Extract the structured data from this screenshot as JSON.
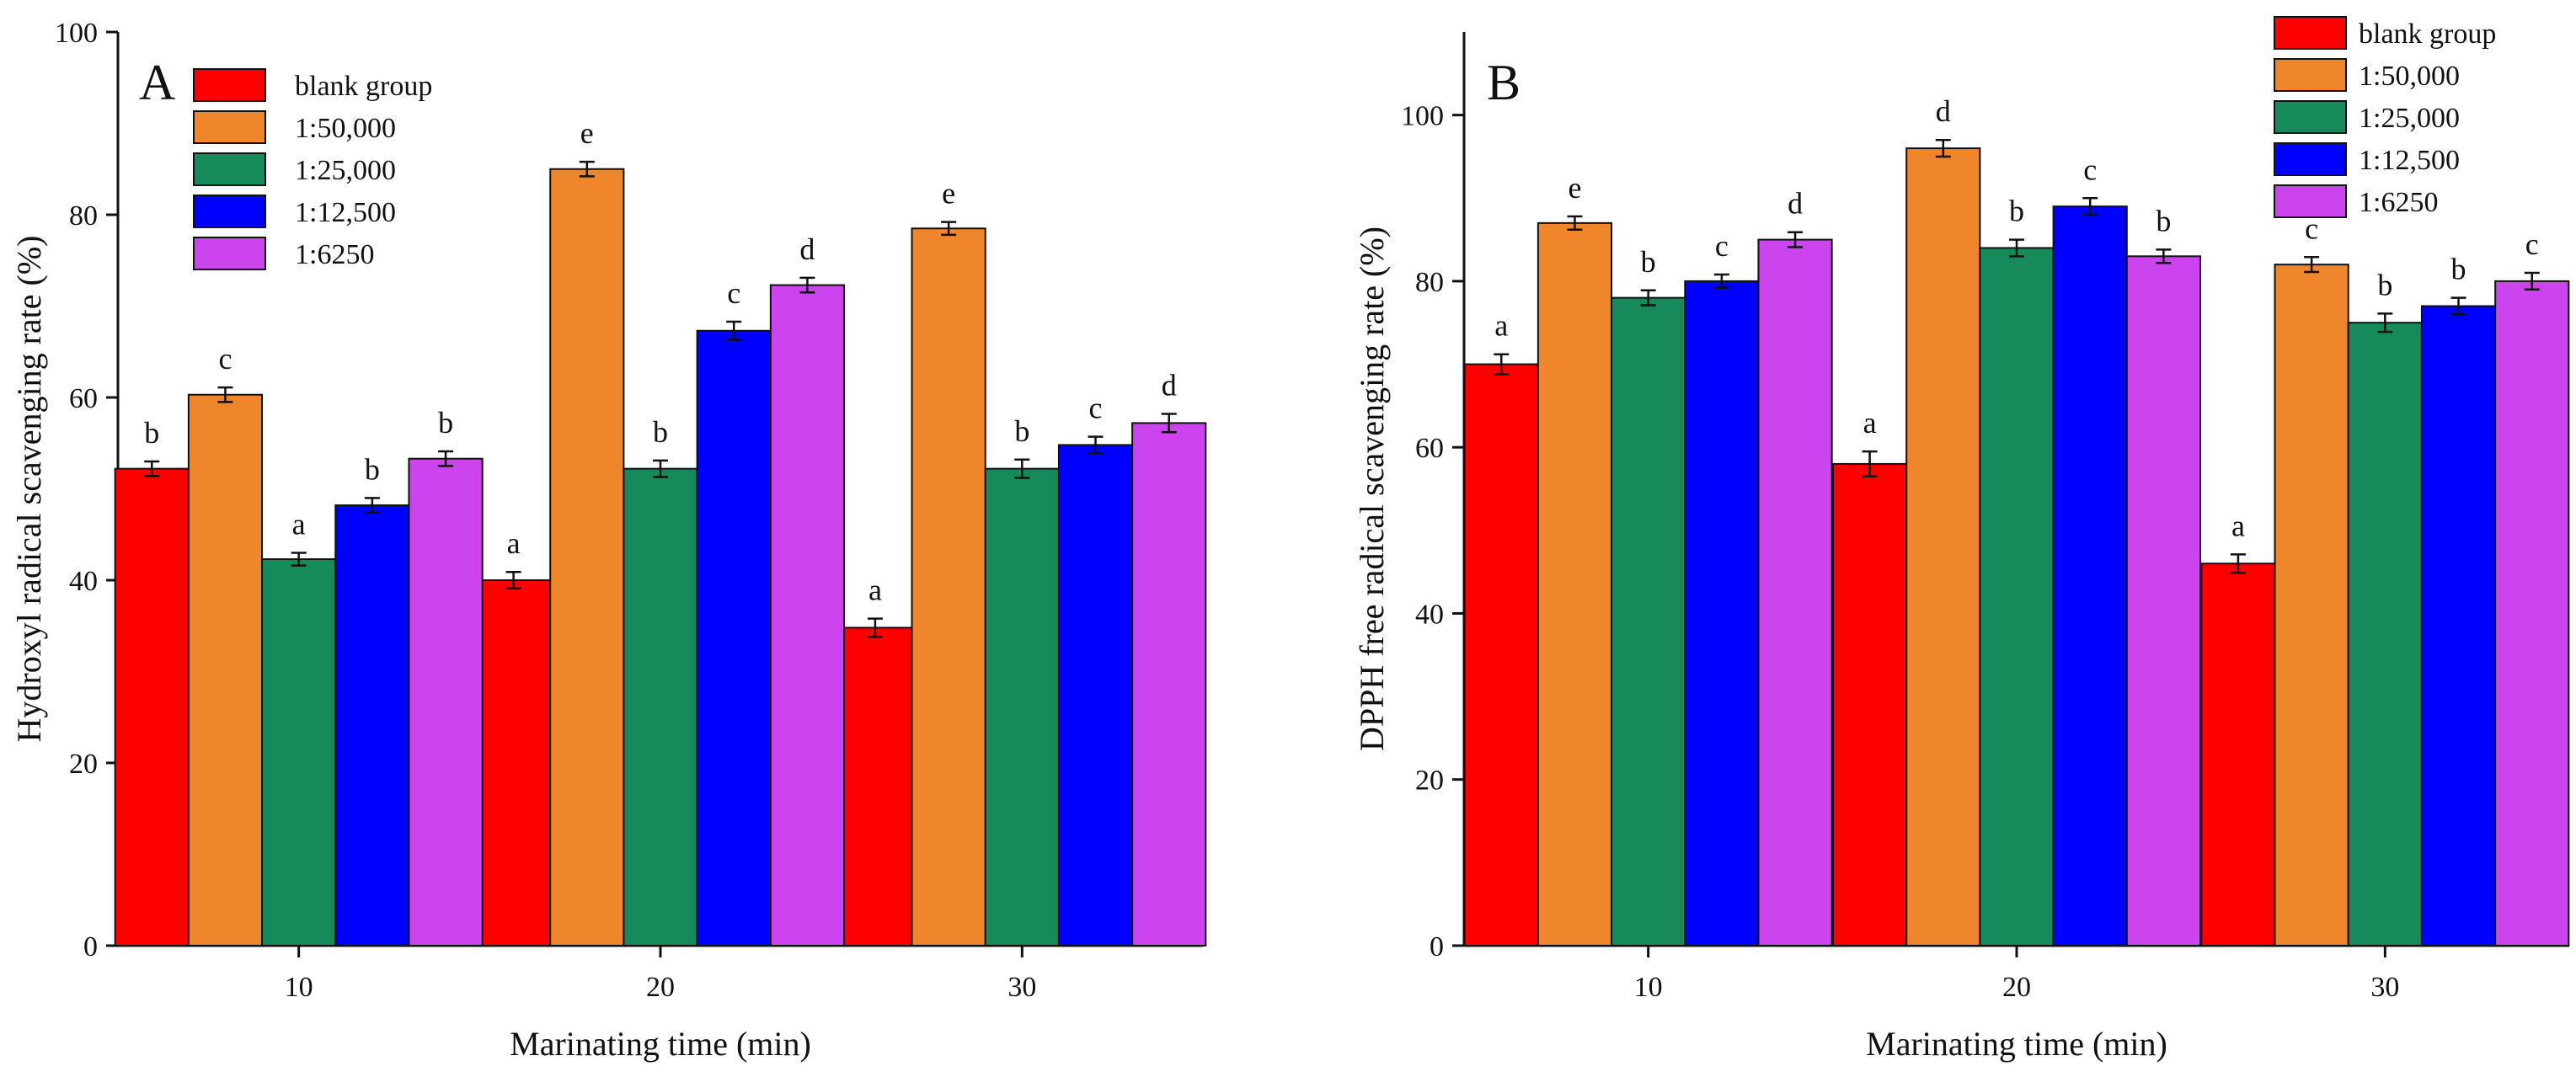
{
  "chart_data": [
    {
      "type": "bar",
      "panel_label": "A",
      "title": "",
      "xlabel": "Marinating time (min)",
      "ylabel": "Hydroxyl radical scavenging rate (%)",
      "categories": [
        "10",
        "20",
        "30"
      ],
      "ylim": [
        0,
        100
      ],
      "yticks": [
        0,
        20,
        40,
        60,
        80,
        100
      ],
      "grid": false,
      "legend_position": "top-left",
      "series": [
        {
          "name": "blank group",
          "color": "#ff0000",
          "values": [
            52.2,
            40.0,
            34.8
          ],
          "errors": [
            0.8,
            0.9,
            1.0
          ],
          "labels": [
            "b",
            "a",
            "a"
          ]
        },
        {
          "name": "1:50,000",
          "color": "#f0862c",
          "values": [
            60.3,
            85.0,
            78.5
          ],
          "errors": [
            0.8,
            0.8,
            0.7
          ],
          "labels": [
            "c",
            "e",
            "e"
          ]
        },
        {
          "name": "1:25,000",
          "color": "#168a5a",
          "values": [
            42.3,
            52.2,
            52.2
          ],
          "errors": [
            0.7,
            0.9,
            1.0
          ],
          "labels": [
            "a",
            "b",
            "b"
          ]
        },
        {
          "name": "1:12,500",
          "color": "#0000ff",
          "values": [
            48.2,
            67.3,
            54.8
          ],
          "errors": [
            0.8,
            1.0,
            0.9
          ],
          "labels": [
            "b",
            "c",
            "c"
          ]
        },
        {
          "name": "1:6250",
          "color": "#cc44ee",
          "values": [
            53.3,
            72.3,
            57.2
          ],
          "errors": [
            0.8,
            0.8,
            1.0
          ],
          "labels": [
            "b",
            "d",
            "d"
          ]
        }
      ]
    },
    {
      "type": "bar",
      "panel_label": "B",
      "title": "",
      "xlabel": "Marinating time (min)",
      "ylabel": "DPPH free radical scavenging rate (%)",
      "categories": [
        "10",
        "20",
        "30"
      ],
      "ylim": [
        0,
        110
      ],
      "yticks": [
        0,
        20,
        40,
        60,
        80,
        100
      ],
      "grid": false,
      "legend_position": "top-right",
      "series": [
        {
          "name": "blank group",
          "color": "#ff0000",
          "values": [
            70.0,
            58.0,
            46.0
          ],
          "errors": [
            1.2,
            1.5,
            1.1
          ],
          "labels": [
            "a",
            "a",
            "a"
          ]
        },
        {
          "name": "1:50,000",
          "color": "#f0862c",
          "values": [
            87.0,
            96.0,
            82.0
          ],
          "errors": [
            0.8,
            1.0,
            0.9
          ],
          "labels": [
            "e",
            "d",
            "c"
          ]
        },
        {
          "name": "1:25,000",
          "color": "#168a5a",
          "values": [
            78.0,
            84.0,
            75.0
          ],
          "errors": [
            0.9,
            1.0,
            1.1
          ],
          "labels": [
            "b",
            "b",
            "b"
          ]
        },
        {
          "name": "1:12,500",
          "color": "#0000ff",
          "values": [
            80.0,
            89.0,
            77.0
          ],
          "errors": [
            0.8,
            1.0,
            1.0
          ],
          "labels": [
            "c",
            "c",
            "b"
          ]
        },
        {
          "name": "1:6250",
          "color": "#cc44ee",
          "values": [
            85.0,
            83.0,
            80.0
          ],
          "errors": [
            0.9,
            0.8,
            1.0
          ],
          "labels": [
            "d",
            "b",
            "c"
          ]
        }
      ]
    }
  ]
}
